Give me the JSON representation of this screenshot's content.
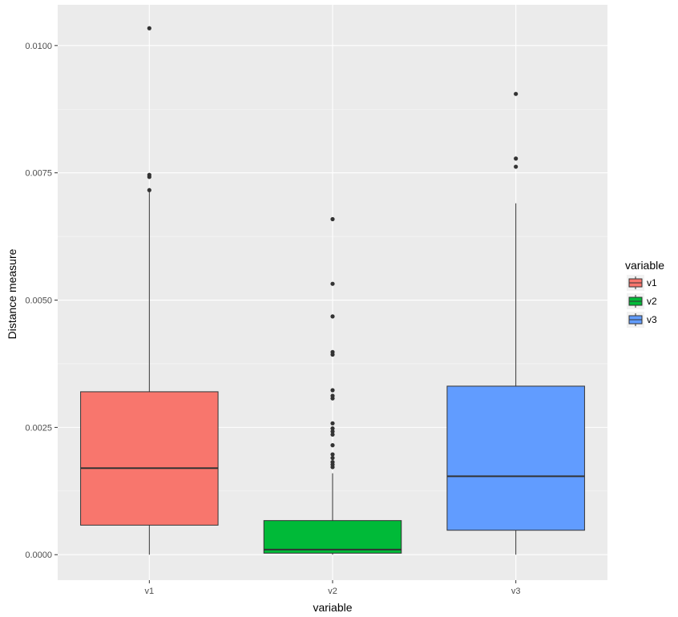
{
  "chart_data": {
    "type": "boxplot",
    "xlabel": "variable",
    "ylabel": "Distance measure",
    "categories": [
      "v1",
      "v2",
      "v3"
    ],
    "ylim": [
      -0.0005,
      0.0108
    ],
    "y_ticks": [
      0.0,
      0.0025,
      0.005,
      0.0075,
      0.01
    ],
    "y_tick_labels": [
      "0.0000",
      "0.0025",
      "0.0050",
      "0.0075",
      "0.0100"
    ],
    "grid": true,
    "legend": {
      "title": "variable",
      "position": "right",
      "entries": [
        "v1",
        "v2",
        "v3"
      ]
    },
    "series": [
      {
        "category": "v1",
        "color": "#F8766D",
        "whisker_low": 0.0,
        "q1": 0.00058,
        "median": 0.0017,
        "q3": 0.0032,
        "whisker_high": 0.00715,
        "outliers": [
          0.01034,
          0.00746,
          0.00742,
          0.00716
        ]
      },
      {
        "category": "v2",
        "color": "#00BA38",
        "whisker_low": 0.0,
        "q1": 3e-05,
        "median": 0.0001,
        "q3": 0.00067,
        "whisker_high": 0.0016,
        "outliers": [
          0.00659,
          0.00532,
          0.00468,
          0.00398,
          0.00393,
          0.00323,
          0.00312,
          0.00307,
          0.00258,
          0.00248,
          0.00242,
          0.00236,
          0.00215,
          0.00197,
          0.0019,
          0.00182,
          0.00177,
          0.00172
        ]
      },
      {
        "category": "v3",
        "color": "#619CFF",
        "whisker_low": 0.0,
        "q1": 0.00048,
        "median": 0.00154,
        "q3": 0.00331,
        "whisker_high": 0.0069,
        "outliers": [
          0.00905,
          0.00778,
          0.00762
        ]
      }
    ]
  }
}
